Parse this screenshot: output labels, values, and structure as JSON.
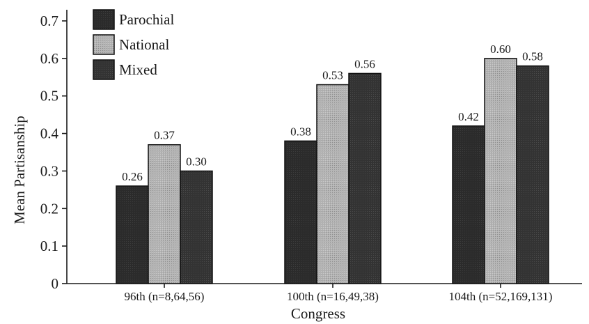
{
  "chart_data": {
    "type": "bar",
    "categories": [
      "96th (n=8,64,56)",
      "100th (n=16,49,38)",
      "104th (n=52,169,131)"
    ],
    "series": [
      {
        "name": "Parochial",
        "values": [
          0.26,
          0.38,
          0.42
        ],
        "labels": [
          "0.26",
          "0.38",
          "0.42"
        ],
        "color": "#2b2b2b"
      },
      {
        "name": "National",
        "values": [
          0.37,
          0.53,
          0.6
        ],
        "labels": [
          "0.37",
          "0.53",
          "0.60"
        ],
        "color": "#b4b4b4"
      },
      {
        "name": "Mixed",
        "values": [
          0.3,
          0.56,
          0.58
        ],
        "labels": [
          "0.30",
          "0.56",
          "0.58"
        ],
        "color": "#333333"
      }
    ],
    "xlabel": "Congress",
    "ylabel": "Mean Partisanship",
    "ylim": [
      0,
      0.7
    ],
    "yticks": [
      "0",
      "0.1",
      "0.2",
      "0.3",
      "0.4",
      "0.5",
      "0.6",
      "0.7"
    ],
    "grid": false,
    "legend_position": "top-left"
  }
}
